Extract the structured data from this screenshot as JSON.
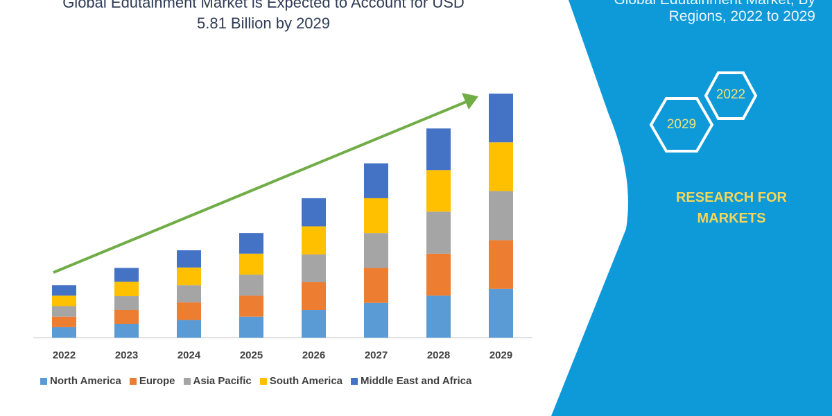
{
  "header": {
    "title_line1": "Global Edutainment Market is Expected to Account for USD",
    "title_line2": "5.81 Billion by 2029"
  },
  "side_panel": {
    "title_line1": "Global Edutainment Market, By",
    "title_line2": "Regions, 2022 to 2029",
    "hex_years": [
      "2022",
      "2029"
    ],
    "brand_line1": "RESEARCH FOR",
    "brand_line2": "MARKETS",
    "panel_color": "#0e9ad9",
    "brand_color": "#f3d65a"
  },
  "chart_data": {
    "type": "bar",
    "stacked": true,
    "categories": [
      "2022",
      "2023",
      "2024",
      "2025",
      "2026",
      "2027",
      "2028",
      "2029"
    ],
    "series": [
      {
        "name": "North America",
        "color": "#5b9bd5",
        "values": [
          0.25,
          0.33,
          0.42,
          0.5,
          0.66,
          0.83,
          1.0,
          1.16
        ]
      },
      {
        "name": "Europe",
        "color": "#ed7d31",
        "values": [
          0.25,
          0.33,
          0.42,
          0.5,
          0.66,
          0.83,
          1.0,
          1.16
        ]
      },
      {
        "name": "Asia Pacific",
        "color": "#a5a5a5",
        "values": [
          0.25,
          0.33,
          0.41,
          0.5,
          0.66,
          0.83,
          1.0,
          1.17
        ]
      },
      {
        "name": "South America",
        "color": "#ffc000",
        "values": [
          0.25,
          0.34,
          0.42,
          0.5,
          0.67,
          0.83,
          0.99,
          1.16
        ]
      },
      {
        "name": "Middle East and Africa",
        "color": "#4472c4",
        "values": [
          0.25,
          0.33,
          0.41,
          0.49,
          0.67,
          0.83,
          0.99,
          1.16
        ]
      }
    ],
    "ylim": [
      0,
      5.81
    ],
    "grid": false,
    "legend": "bottom",
    "trend_arrow_color": "#70ad47"
  }
}
